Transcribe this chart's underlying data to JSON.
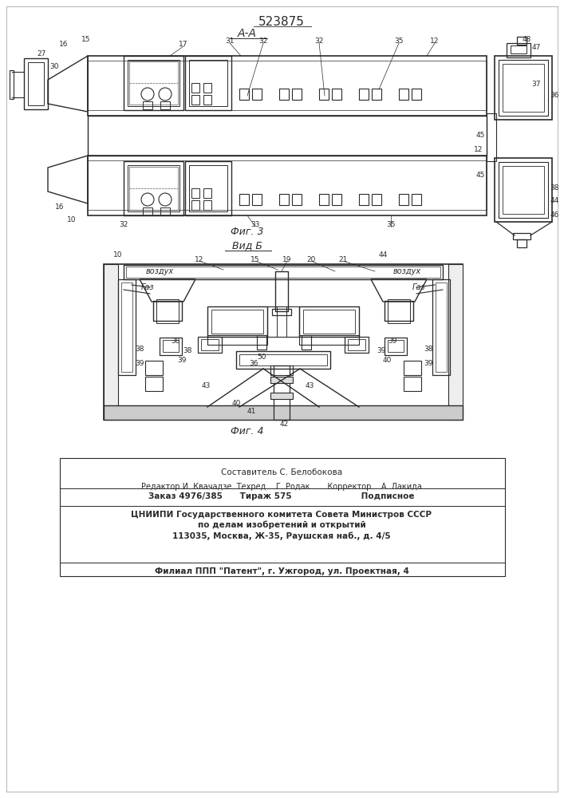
{
  "title": "523875",
  "section_label_top": "А-А",
  "fig3_label": "Фиг. 3",
  "fig4_label": "Фиг. 4",
  "view_b_label": "Вид Б",
  "bg_color": "#ffffff",
  "line_color": "#2a2a2a",
  "footer": {
    "line1": "Составитель С. Белобокова",
    "line2": "Редактор И. Квачадзе  Техред    Г. Родак       Корректор    А. Лакида",
    "line3": "Заказ 4976/385      Тираж 575                        Подписное",
    "line4": "ЦНИИПИ Государственного комитета Совета Министров СССР",
    "line5": "по делам изобретений и открытий",
    "line6": "113035, Москва, Ж-35, Раушская наб., д. 4/5",
    "line7": "Филиал ППП \"Патент\", г. Ужгород, ул. Проектная, 4"
  }
}
